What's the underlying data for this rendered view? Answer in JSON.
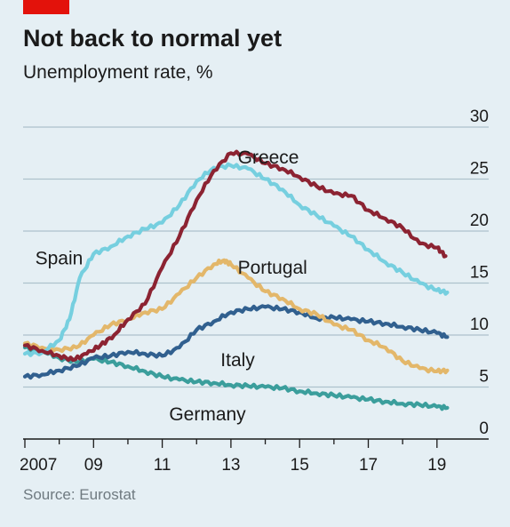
{
  "title": "Not back to normal yet",
  "subtitle": "Unemployment rate, %",
  "source": "Source: Eurostat",
  "colors": {
    "background": "#e5eff4",
    "accent": "#e3120b",
    "gridline": "#adc1cc",
    "greece": "#8c2332",
    "spain": "#76cfdf",
    "portugal": "#e3b76a",
    "italy": "#31608f",
    "germany": "#3b9e9c"
  },
  "chart_data": {
    "type": "line",
    "ylim": [
      0,
      30
    ],
    "yticks": [
      0,
      5,
      10,
      15,
      20,
      25,
      30
    ],
    "ytick_labels": [
      "0",
      "5",
      "10",
      "15",
      "20",
      "25",
      "30"
    ],
    "xlim": [
      2007.0,
      2019.6
    ],
    "xticks": [
      2007,
      2009,
      2011,
      2013,
      2015,
      2017,
      2019
    ],
    "xtick_labels": [
      "2007",
      "09",
      "11",
      "13",
      "15",
      "17",
      "19"
    ],
    "grid": true,
    "series": [
      {
        "name": "Greece",
        "color_key": "greece",
        "label_at": [
          2013.2,
          26.5
        ],
        "points": [
          [
            2007.0,
            9.0
          ],
          [
            2007.5,
            8.5
          ],
          [
            2008.0,
            8.0
          ],
          [
            2008.4,
            7.6
          ],
          [
            2008.8,
            8.2
          ],
          [
            2009.2,
            9.0
          ],
          [
            2009.6,
            10.0
          ],
          [
            2010.0,
            11.5
          ],
          [
            2010.5,
            13.0
          ],
          [
            2011.0,
            16.5
          ],
          [
            2011.5,
            19.5
          ],
          [
            2012.0,
            23.0
          ],
          [
            2012.5,
            25.8
          ],
          [
            2013.0,
            27.5
          ],
          [
            2013.5,
            27.4
          ],
          [
            2014.0,
            26.5
          ],
          [
            2014.5,
            26.0
          ],
          [
            2015.0,
            25.2
          ],
          [
            2015.5,
            24.3
          ],
          [
            2016.0,
            23.6
          ],
          [
            2016.5,
            23.4
          ],
          [
            2017.0,
            22.0
          ],
          [
            2017.5,
            21.2
          ],
          [
            2018.0,
            20.3
          ],
          [
            2018.5,
            18.8
          ],
          [
            2019.0,
            18.4
          ],
          [
            2019.25,
            17.6
          ]
        ]
      },
      {
        "name": "Spain",
        "color_key": "spain",
        "label_at": [
          2007.3,
          16.8
        ],
        "points": [
          [
            2007.0,
            8.2
          ],
          [
            2007.5,
            8.3
          ],
          [
            2008.0,
            9.5
          ],
          [
            2008.3,
            11.5
          ],
          [
            2008.6,
            15.5
          ],
          [
            2009.0,
            17.8
          ],
          [
            2009.5,
            18.5
          ],
          [
            2010.0,
            19.5
          ],
          [
            2010.5,
            20.2
          ],
          [
            2011.0,
            20.8
          ],
          [
            2011.5,
            22.5
          ],
          [
            2012.0,
            24.8
          ],
          [
            2012.5,
            26.1
          ],
          [
            2013.0,
            26.3
          ],
          [
            2013.5,
            26.0
          ],
          [
            2014.0,
            25.0
          ],
          [
            2014.5,
            24.0
          ],
          [
            2015.0,
            22.5
          ],
          [
            2015.5,
            21.5
          ],
          [
            2016.0,
            20.5
          ],
          [
            2016.5,
            19.5
          ],
          [
            2017.0,
            18.2
          ],
          [
            2017.5,
            17.0
          ],
          [
            2018.0,
            16.0
          ],
          [
            2018.5,
            15.0
          ],
          [
            2019.0,
            14.3
          ],
          [
            2019.3,
            14.1
          ]
        ]
      },
      {
        "name": "Portugal",
        "color_key": "portugal",
        "label_at": [
          2013.2,
          15.9
        ],
        "points": [
          [
            2007.0,
            9.2
          ],
          [
            2007.5,
            8.8
          ],
          [
            2008.0,
            8.6
          ],
          [
            2008.5,
            8.8
          ],
          [
            2009.0,
            10.0
          ],
          [
            2009.5,
            11.0
          ],
          [
            2010.0,
            11.5
          ],
          [
            2010.5,
            12.2
          ],
          [
            2011.0,
            12.5
          ],
          [
            2011.5,
            14.0
          ],
          [
            2012.0,
            15.5
          ],
          [
            2012.5,
            16.8
          ],
          [
            2012.8,
            17.2
          ],
          [
            2013.0,
            16.8
          ],
          [
            2013.5,
            15.5
          ],
          [
            2014.0,
            14.2
          ],
          [
            2014.5,
            13.5
          ],
          [
            2015.0,
            12.5
          ],
          [
            2015.5,
            12.0
          ],
          [
            2016.0,
            11.0
          ],
          [
            2016.5,
            10.5
          ],
          [
            2017.0,
            9.5
          ],
          [
            2017.5,
            8.8
          ],
          [
            2018.0,
            7.5
          ],
          [
            2018.5,
            6.8
          ],
          [
            2019.0,
            6.5
          ],
          [
            2019.3,
            6.6
          ]
        ]
      },
      {
        "name": "Italy",
        "color_key": "italy",
        "label_at": [
          2012.7,
          7.0
        ],
        "points": [
          [
            2007.0,
            6.0
          ],
          [
            2007.5,
            6.2
          ],
          [
            2008.0,
            6.6
          ],
          [
            2008.5,
            7.0
          ],
          [
            2009.0,
            7.8
          ],
          [
            2009.5,
            8.0
          ],
          [
            2010.0,
            8.4
          ],
          [
            2010.5,
            8.2
          ],
          [
            2011.0,
            8.0
          ],
          [
            2011.5,
            8.8
          ],
          [
            2012.0,
            10.5
          ],
          [
            2012.5,
            11.3
          ],
          [
            2013.0,
            12.2
          ],
          [
            2013.5,
            12.5
          ],
          [
            2014.0,
            12.7
          ],
          [
            2014.5,
            12.5
          ],
          [
            2015.0,
            12.2
          ],
          [
            2015.5,
            11.6
          ],
          [
            2016.0,
            11.7
          ],
          [
            2016.5,
            11.5
          ],
          [
            2017.0,
            11.3
          ],
          [
            2017.5,
            11.1
          ],
          [
            2018.0,
            10.8
          ],
          [
            2018.5,
            10.5
          ],
          [
            2019.0,
            10.2
          ],
          [
            2019.3,
            9.8
          ]
        ]
      },
      {
        "name": "Germany",
        "color_key": "germany",
        "label_at": [
          2011.2,
          1.8
        ],
        "points": [
          [
            2007.0,
            8.8
          ],
          [
            2007.5,
            8.5
          ],
          [
            2008.0,
            7.8
          ],
          [
            2008.5,
            7.4
          ],
          [
            2009.0,
            7.7
          ],
          [
            2009.5,
            7.4
          ],
          [
            2010.0,
            7.0
          ],
          [
            2010.5,
            6.5
          ],
          [
            2011.0,
            6.0
          ],
          [
            2011.5,
            5.7
          ],
          [
            2012.0,
            5.5
          ],
          [
            2012.5,
            5.4
          ],
          [
            2013.0,
            5.2
          ],
          [
            2013.5,
            5.1
          ],
          [
            2014.0,
            5.0
          ],
          [
            2014.5,
            4.9
          ],
          [
            2015.0,
            4.6
          ],
          [
            2015.5,
            4.4
          ],
          [
            2016.0,
            4.2
          ],
          [
            2016.5,
            4.0
          ],
          [
            2017.0,
            3.8
          ],
          [
            2017.5,
            3.6
          ],
          [
            2018.0,
            3.4
          ],
          [
            2018.5,
            3.3
          ],
          [
            2019.0,
            3.1
          ],
          [
            2019.3,
            3.0
          ]
        ]
      }
    ]
  }
}
